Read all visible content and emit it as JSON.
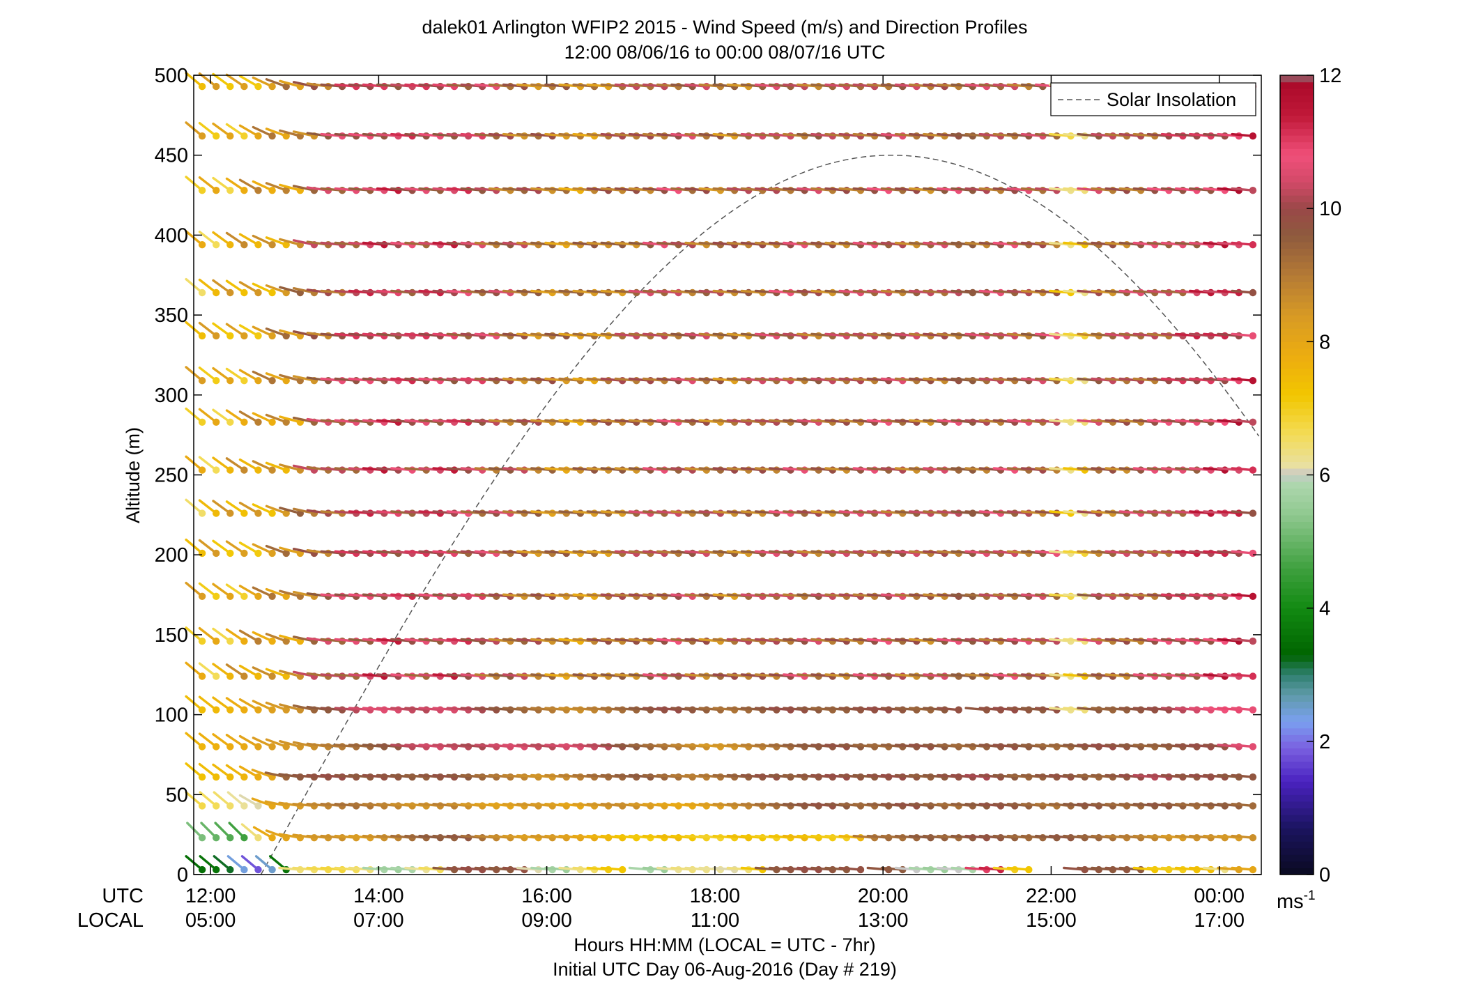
{
  "chart_data": {
    "type": "wind-barb-profile",
    "title": "dalek01 Arlington WFIP2 2015 - Wind Speed (m/s) and Direction Profiles",
    "subtitle": "12:00 08/06/16 to 00:00 08/07/16  UTC",
    "ylabel": "Altitude (m)",
    "ylim": [
      0,
      500
    ],
    "yticks": [
      "0",
      "50",
      "100",
      "150",
      "200",
      "250",
      "300",
      "350",
      "400",
      "450",
      "500"
    ],
    "xlim_hours_utc": [
      11.8,
      24.5
    ],
    "xticks": [
      {
        "utc": "12:00",
        "local": "05:00"
      },
      {
        "utc": "14:00",
        "local": "07:00"
      },
      {
        "utc": "16:00",
        "local": "09:00"
      },
      {
        "utc": "18:00",
        "local": "11:00"
      },
      {
        "utc": "20:00",
        "local": "13:00"
      },
      {
        "utc": "22:00",
        "local": "15:00"
      },
      {
        "utc": "00:00",
        "local": "17:00"
      }
    ],
    "row_label_utc": "UTC",
    "row_label_local": "LOCAL",
    "xlabel": "Hours HH:MM  (LOCAL = UTC - 7hr)",
    "xlabel2": "Initial UTC Day 06-Aug-2016 (Day # 219)",
    "legend": {
      "label": "Solar Insolation",
      "placement": "top-right"
    },
    "colorbar": {
      "min": 0,
      "max": 12,
      "ticks": [
        "0",
        "2",
        "4",
        "6",
        "8",
        "10",
        "12"
      ],
      "unit_label": "ms",
      "unit_exp": "-1"
    },
    "solar_insolation": {
      "start_hour_utc": 12.6,
      "peak_hour_utc": 20.1,
      "peak_altitude_m": 450
    },
    "wind_profile": {
      "levels_m": [
        3,
        23,
        43,
        61,
        80,
        103,
        124,
        146,
        174,
        201,
        226,
        253,
        283,
        309,
        337,
        364,
        394,
        428,
        462,
        493
      ],
      "start_hour_utc": 11.9,
      "step_min": 10,
      "rows": [
        {
          "altitude_m": 3,
          "speed_m_s": [
            3.5,
            3.6,
            3.2,
            2.4,
            1.8,
            2.5,
            3.6,
            6.4,
            6.5,
            6.7,
            6.8,
            6.6,
            6.4,
            5.8,
            5.6,
            5.8,
            6.2,
            6.6,
            9.6,
            9.8,
            9.9,
            9.7,
            9.6,
            9.8,
            6.1,
            5.8,
            5.6,
            6.3,
            6.5,
            7.1,
            7.2,
            null,
            5.8,
            5.6,
            6.2,
            6.4,
            6.3,
            6.2,
            6.1,
            6.4,
            7.2,
            9.6,
            9.7,
            9.8,
            9.9,
            9.7,
            9.6,
            9.8,
            null,
            9.7,
            9.6,
            6.0,
            5.8,
            5.6,
            6.0,
            5.8,
            11.0,
            11.3,
            7.0,
            7.2,
            null,
            null,
            null,
            9.8,
            9.7,
            9.6,
            9.7,
            9.6,
            7.2,
            7.1,
            7.0,
            7.3,
            7.4,
            6.3,
            8.2,
            8.0,
            8.1
          ],
          "dir_deg": [
            230,
            230,
            230,
            230,
            230,
            230,
            230,
            265,
            265,
            265,
            265,
            265,
            265,
            265,
            265,
            265,
            265,
            265,
            265,
            265,
            265,
            265,
            265,
            265,
            265,
            265,
            265,
            265,
            265,
            265,
            265,
            null,
            265,
            265,
            265,
            265,
            265,
            265,
            265,
            265,
            265,
            265,
            265,
            265,
            265,
            265,
            265,
            265,
            null,
            265,
            265,
            265,
            265,
            265,
            265,
            265,
            265,
            265,
            265,
            265,
            null,
            null,
            null,
            265,
            265,
            265,
            265,
            265,
            265,
            265,
            265,
            265,
            265,
            265,
            265,
            265,
            265
          ]
        },
        {
          "altitude_m": 23,
          "speed_m_s": [
            5.2,
            5.0,
            4.8,
            4.6,
            6.4,
            7.9,
            8.1,
            8.2,
            8.4,
            8.5,
            8.6,
            8.4,
            8.3,
            8.6,
            8.8,
            9.2,
            9.4,
            9.6,
            9.5,
            9.7,
            9.2,
            8.8,
            8.6,
            8.4,
            8.2,
            8.5,
            8.3,
            8.1,
            7.9,
            7.6,
            7.4,
            7.2,
            7.1,
            7.3,
            7.5,
            7.2,
            7.0,
            6.9,
            7.1,
            7.4,
            7.2,
            7.0,
            7.3,
            7.6,
            7.3,
            7.1,
            7.0,
            7.6,
            9.0,
            9.3,
            9.2,
            9.4,
            9.6,
            9.5,
            9.3,
            9.6,
            9.8,
            9.7,
            9.5,
            9.3,
            9.4,
            9.6,
            9.7,
            9.5,
            9.4,
            9.2,
            8.9,
            9.0,
            8.8,
            8.6,
            8.4,
            8.6,
            8.7,
            8.5,
            8.4,
            8.6,
            8.8
          ],
          "dir_deg": [
            225,
            225,
            225,
            225,
            230,
            240,
            250,
            260,
            262,
            265,
            265,
            265,
            265,
            265,
            265,
            265,
            265,
            265,
            265,
            265,
            265,
            265,
            265,
            265,
            265,
            265,
            265,
            265,
            265,
            265,
            265,
            265,
            265,
            265,
            265,
            265,
            265,
            265,
            265,
            265,
            265,
            265,
            265,
            265,
            265,
            265,
            265,
            265,
            265,
            265,
            265,
            265,
            265,
            265,
            265,
            265,
            265,
            265,
            265,
            265,
            265,
            265,
            265,
            265,
            265,
            265,
            265,
            265,
            265,
            265,
            265,
            265,
            265,
            265,
            265,
            265,
            265
          ]
        },
        {
          "altitude_m": 43,
          "speed_m_s": [
            6.7,
            6.6,
            6.5,
            6.2,
            6.1,
            8.0,
            8.2,
            8.4,
            8.6,
            8.8,
            9.0,
            9.2,
            9.1,
            8.9,
            8.8,
            8.6,
            8.5,
            8.7,
            8.9,
            8.6,
            8.4,
            8.2,
            8.1,
            8.3,
            8.5,
            8.4,
            8.2,
            8.0,
            8.3,
            8.5,
            8.7,
            8.6,
            8.4,
            8.2,
            8.0,
            7.9,
            8.1,
            8.3,
            8.6,
            8.8,
            9.0,
            9.2,
            9.4,
            9.6,
            9.7,
            9.8,
            9.6,
            9.4,
            9.3,
            9.5,
            9.7,
            9.8,
            9.6,
            9.4,
            9.2,
            9.5,
            9.6,
            9.8,
            9.7,
            9.5,
            9.3,
            9.1,
            9.4,
            9.6,
            9.7,
            9.5,
            9.3,
            9.4,
            9.6,
            9.7,
            9.5,
            9.3,
            9.4,
            9.6,
            9.5,
            9.3,
            9.6
          ],
          "dir_deg": [
            230,
            230,
            230,
            230,
            240,
            250,
            258,
            262,
            265,
            265,
            265,
            265,
            265,
            265,
            265,
            265,
            265,
            265,
            265,
            265,
            265,
            265,
            265,
            265,
            265,
            265,
            265,
            265,
            265,
            265,
            265,
            265,
            265,
            265,
            265,
            265,
            265,
            265,
            265,
            265,
            265,
            265,
            265,
            265,
            265,
            265,
            265,
            265,
            265,
            265,
            265,
            265,
            265,
            265,
            265,
            265,
            265,
            265,
            265,
            265,
            265,
            265,
            265,
            265,
            265,
            265,
            265,
            265,
            265,
            265,
            265,
            265,
            265,
            265,
            265,
            265,
            265
          ]
        },
        {
          "altitude_m": 61,
          "speed_m_s": [
            7.3,
            7.4,
            7.5,
            7.6,
            7.8,
            8.0,
            9.4,
            9.6,
            9.7,
            9.8,
            9.9,
            9.7,
            9.6,
            9.8,
            9.7,
            9.6,
            9.5,
            9.7,
            9.8,
            9.6,
            9.4,
            9.2,
            9.0,
            8.8,
            8.6,
            8.5,
            8.7,
            8.9,
            9.1,
            9.3,
            9.4,
            9.5,
            9.6,
            9.4,
            9.2,
            9.0,
            8.9,
            9.1,
            9.3,
            9.5,
            9.7,
            9.8,
            9.6,
            9.5,
            9.7,
            9.8,
            9.9,
            9.7,
            9.6,
            9.8,
            9.9,
            9.7,
            9.5,
            9.6,
            9.8,
            9.9,
            10.1,
            9.8,
            9.6,
            9.4,
            9.5,
            9.7,
            9.8,
            9.6,
            9.4,
            9.5,
            9.7,
            9.9,
            10.2,
            10.1,
            9.8,
            9.7,
            9.9,
            9.8,
            9.6,
            9.7,
            9.9
          ],
          "dir_deg": [
            230,
            232,
            234,
            236,
            240,
            250,
            258,
            262,
            265,
            265,
            265,
            265,
            265,
            265,
            265,
            265,
            265,
            265,
            265,
            265,
            265,
            265,
            265,
            265,
            265,
            265,
            265,
            265,
            265,
            265,
            265,
            265,
            265,
            265,
            265,
            265,
            265,
            265,
            265,
            265,
            265,
            265,
            265,
            265,
            265,
            265,
            265,
            265,
            265,
            265,
            265,
            265,
            265,
            265,
            265,
            265,
            265,
            265,
            265,
            265,
            265,
            265,
            265,
            265,
            265,
            265,
            265,
            265,
            265,
            265,
            265,
            265,
            265,
            265,
            265,
            265,
            265
          ]
        },
        {
          "altitude_m": 80,
          "speed_m_s": [
            7.6,
            7.7,
            7.8,
            7.9,
            8.1,
            8.3,
            8.4,
            8.5,
            8.6,
            8.8,
            9.0,
            9.2,
            9.4,
            9.6,
            9.7,
            10.2,
            10.3,
            10.4,
            10.3,
            10.2,
            10.1,
            10.3,
            10.4,
            10.5,
            10.3,
            10.2,
            10.4,
            10.5,
            10.3,
            10.2,
            9.8,
            9.6,
            9.4,
            9.2,
            9.0,
            8.8,
            8.6,
            8.4,
            8.5,
            8.7,
            8.9,
            9.1,
            9.3,
            9.5,
            9.6,
            9.7,
            9.8,
            9.6,
            9.4,
            9.3,
            9.5,
            9.7,
            9.8,
            9.6,
            9.4,
            9.3,
            9.5,
            9.7,
            9.8,
            9.6,
            9.5,
            9.3,
            9.4,
            9.6,
            9.8,
            9.9,
            9.7,
            9.6,
            9.4,
            9.5,
            9.7,
            9.8,
            9.9,
            9.8,
            10.4,
            10.6,
            10.8
          ],
          "dir_deg": [
            230,
            232,
            234,
            236,
            240,
            245,
            250,
            255,
            258,
            262,
            265,
            265,
            265,
            265,
            265,
            265,
            265,
            265,
            265,
            265,
            265,
            265,
            265,
            265,
            265,
            265,
            265,
            265,
            265,
            265,
            265,
            265,
            265,
            265,
            265,
            265,
            265,
            265,
            265,
            265,
            265,
            265,
            265,
            265,
            265,
            265,
            265,
            265,
            265,
            265,
            265,
            265,
            265,
            265,
            265,
            265,
            265,
            265,
            265,
            265,
            265,
            265,
            265,
            265,
            265,
            265,
            265,
            265,
            265,
            265,
            265,
            265,
            265,
            265,
            265,
            265,
            265
          ]
        },
        {
          "altitude_m": 103,
          "speed_m_s": [
            7.4,
            7.5,
            7.6,
            7.8,
            8.0,
            8.2,
            8.4,
            8.6,
            9.4,
            9.6,
            9.8,
            10.2,
            10.4,
            10.6,
            10.5,
            10.3,
            10.2,
            10.4,
            10.5,
            10.3,
            10.1,
            9.8,
            9.6,
            9.4,
            9.2,
            9.0,
            8.8,
            8.6,
            8.8,
            9.0,
            9.2,
            9.4,
            9.6,
            9.8,
            9.9,
            9.7,
            9.5,
            9.3,
            9.1,
            9.3,
            9.5,
            9.7,
            9.9,
            9.8,
            9.6,
            9.4,
            9.5,
            9.7,
            9.8,
            9.9,
            9.7,
            9.5,
            9.4,
            9.6,
            9.8,
            null,
            9.7,
            9.8,
            9.9,
            9.7,
            9.6,
            9.8,
            6.3,
            6.4,
            9.6,
            9.4,
            9.5,
            9.7,
            9.8,
            9.9,
            10.2,
            10.4,
            10.6,
            10.8,
            10.9,
            10.7,
            10.8
          ],
          "dir_deg": [
            230,
            232,
            234,
            236,
            240,
            245,
            250,
            255,
            258,
            262,
            265,
            265,
            265,
            265,
            265,
            265,
            265,
            265,
            265,
            265,
            265,
            265,
            265,
            265,
            265,
            265,
            265,
            265,
            265,
            265,
            265,
            265,
            265,
            265,
            265,
            265,
            265,
            265,
            265,
            265,
            265,
            265,
            265,
            265,
            265,
            265,
            265,
            265,
            265,
            265,
            265,
            265,
            265,
            265,
            265,
            null,
            265,
            265,
            265,
            265,
            265,
            265,
            265,
            265,
            265,
            265,
            265,
            265,
            265,
            265,
            265,
            265,
            265,
            265,
            265,
            265,
            265
          ]
        }
      ]
    }
  }
}
